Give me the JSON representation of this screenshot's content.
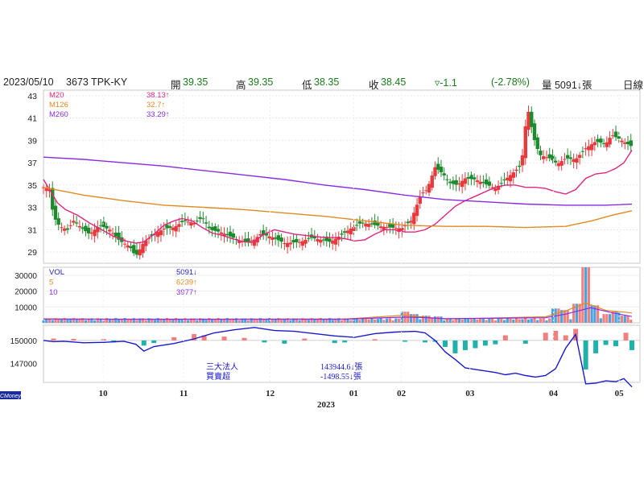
{
  "header": {
    "date": "2023/05/10",
    "stock": "3673 TPK-KY",
    "open_label": "開",
    "open": "39.35",
    "high_label": "高",
    "high": "39.35",
    "low_label": "低",
    "low": "38.35",
    "close_label": "收",
    "close": "38.45",
    "change": "▿-1.1",
    "change_pct": "(-2.78%)",
    "volume_text": "量 5091↓張",
    "period": "日線"
  },
  "colors": {
    "up": "#e8393d",
    "down": "#1e8a2e",
    "ma20": "#e0277f",
    "ma126": "#e08a20",
    "ma260": "#8a2be2",
    "inst_line": "#1a1acc",
    "bar_pos": "#f08080",
    "bar_neg": "#20b2aa"
  },
  "chart_data": [
    {
      "type": "candlestick",
      "panel": "price",
      "yticks": [
        "43",
        "41",
        "39",
        "37",
        "35",
        "33",
        "31",
        "29"
      ],
      "ylim": [
        28,
        43.5
      ],
      "legend": [
        {
          "name": "M20",
          "value": "38.13↑"
        },
        {
          "name": "M126",
          "value": "32.7↑"
        },
        {
          "name": "M260",
          "value": "33.29↑"
        }
      ],
      "series": [
        {
          "name": "M20",
          "points": [
            [
              0,
              35.5
            ],
            [
              6,
              34.6
            ],
            [
              14,
              33.4
            ],
            [
              22,
              32.8
            ],
            [
              34,
              32.3
            ],
            [
              46,
              31.6
            ],
            [
              58,
              31.0
            ],
            [
              70,
              30.4
            ],
            [
              82,
              30.0
            ],
            [
              92,
              29.8
            ],
            [
              100,
              29.9
            ],
            [
              110,
              30.6
            ],
            [
              120,
              31.4
            ],
            [
              130,
              31.8
            ],
            [
              138,
              32.0
            ],
            [
              148,
              31.8
            ],
            [
              158,
              31.2
            ],
            [
              168,
              30.7
            ],
            [
              178,
              30.5
            ],
            [
              188,
              30.2
            ],
            [
              200,
              29.9
            ],
            [
              210,
              30.0
            ],
            [
              220,
              30.6
            ],
            [
              230,
              31.0
            ],
            [
              240,
              30.8
            ],
            [
              250,
              30.6
            ],
            [
              260,
              30.5
            ],
            [
              270,
              30.4
            ],
            [
              280,
              30.3
            ],
            [
              290,
              30.3
            ],
            [
              300,
              30.2
            ],
            [
              310,
              30.0
            ],
            [
              320,
              30.1
            ],
            [
              330,
              30.6
            ],
            [
              340,
              31.0
            ],
            [
              350,
              31.0
            ],
            [
              360,
              30.8
            ],
            [
              370,
              30.8
            ],
            [
              380,
              31.0
            ],
            [
              390,
              31.5
            ],
            [
              400,
              32.3
            ],
            [
              410,
              33.1
            ],
            [
              420,
              33.6
            ],
            [
              430,
              34.0
            ],
            [
              440,
              34.4
            ],
            [
              450,
              34.8
            ],
            [
              460,
              35.0
            ],
            [
              470,
              35.0
            ],
            [
              480,
              34.8
            ],
            [
              490,
              34.8
            ],
            [
              500,
              34.7
            ],
            [
              510,
              34.4
            ],
            [
              520,
              34.2
            ],
            [
              530,
              34.6
            ],
            [
              540,
              35.6
            ],
            [
              550,
              36.0
            ],
            [
              560,
              36.1
            ],
            [
              570,
              36.5
            ],
            [
              578,
              37.0
            ],
            [
              586,
              38.13
            ]
          ]
        },
        {
          "name": "M126",
          "points": [
            [
              0,
              34.8
            ],
            [
              40,
              34.1
            ],
            [
              80,
              33.6
            ],
            [
              120,
              33.2
            ],
            [
              160,
              33.0
            ],
            [
              200,
              32.8
            ],
            [
              240,
              32.5
            ],
            [
              280,
              32.2
            ],
            [
              320,
              31.8
            ],
            [
              360,
              31.4
            ],
            [
              400,
              31.3
            ],
            [
              440,
              31.3
            ],
            [
              480,
              31.2
            ],
            [
              520,
              31.3
            ],
            [
              546,
              31.8
            ],
            [
              566,
              32.3
            ],
            [
              586,
              32.7
            ]
          ]
        },
        {
          "name": "M260",
          "points": [
            [
              0,
              37.5
            ],
            [
              40,
              37.3
            ],
            [
              80,
              37.0
            ],
            [
              120,
              36.7
            ],
            [
              160,
              36.3
            ],
            [
              200,
              35.9
            ],
            [
              240,
              35.5
            ],
            [
              280,
              35.0
            ],
            [
              320,
              34.6
            ],
            [
              360,
              34.1
            ],
            [
              400,
              33.7
            ],
            [
              440,
              33.5
            ],
            [
              480,
              33.3
            ],
            [
              520,
              33.2
            ],
            [
              560,
              33.2
            ],
            [
              586,
              33.29
            ]
          ]
        }
      ]
    },
    {
      "type": "bar",
      "panel": "volume",
      "yticks": [
        "30000",
        "20000",
        "10000"
      ],
      "ylim": [
        0,
        35000
      ],
      "legend": [
        {
          "name": "VOL",
          "value": "5091↓"
        },
        {
          "name": "5",
          "value": "6239↑"
        },
        {
          "name": "10",
          "value": "3977↑"
        }
      ],
      "spikes": [
        [
          360,
          7000
        ],
        [
          370,
          5500
        ],
        [
          380,
          4500
        ],
        [
          392,
          4000
        ],
        [
          510,
          9000
        ],
        [
          520,
          8000
        ],
        [
          530,
          12000
        ],
        [
          540,
          35000
        ],
        [
          550,
          11000
        ],
        [
          560,
          5500
        ],
        [
          570,
          7000
        ],
        [
          580,
          4500
        ]
      ]
    },
    {
      "type": "bar+line",
      "panel": "institutional",
      "yticks": [
        "150000",
        "147000"
      ],
      "ylim": [
        144500,
        152000
      ],
      "labels": [
        {
          "name": "三大法人",
          "value": "143944.6↓張"
        },
        {
          "name": "買賣超",
          "value": "-1498.55↓張"
        }
      ],
      "line": [
        [
          0,
          150000
        ],
        [
          10,
          149850
        ],
        [
          20,
          149900
        ],
        [
          40,
          149700
        ],
        [
          60,
          149750
        ],
        [
          80,
          149900
        ],
        [
          92,
          149500
        ],
        [
          100,
          148600
        ],
        [
          110,
          149200
        ],
        [
          130,
          149600
        ],
        [
          150,
          150200
        ],
        [
          170,
          151000
        ],
        [
          190,
          151400
        ],
        [
          210,
          151700
        ],
        [
          230,
          151300
        ],
        [
          250,
          151200
        ],
        [
          270,
          150900
        ],
        [
          290,
          150600
        ],
        [
          310,
          150400
        ],
        [
          330,
          150900
        ],
        [
          350,
          151100
        ],
        [
          370,
          151200
        ],
        [
          380,
          151000
        ],
        [
          390,
          150000
        ],
        [
          400,
          148500
        ],
        [
          410,
          147500
        ],
        [
          420,
          146400
        ],
        [
          430,
          146200
        ],
        [
          440,
          146000
        ],
        [
          450,
          145800
        ],
        [
          460,
          145500
        ],
        [
          470,
          145700
        ],
        [
          480,
          145400
        ],
        [
          490,
          145200
        ],
        [
          500,
          145400
        ],
        [
          510,
          146300
        ],
        [
          520,
          149000
        ],
        [
          530,
          150800
        ],
        [
          540,
          144300
        ],
        [
          550,
          144400
        ],
        [
          560,
          144700
        ],
        [
          570,
          144600
        ],
        [
          578,
          145000
        ],
        [
          586,
          143900
        ]
      ],
      "bars": [
        [
          10,
          300
        ],
        [
          30,
          250
        ],
        [
          60,
          200
        ],
        [
          70,
          -300
        ],
        [
          100,
          -800
        ],
        [
          110,
          -400
        ],
        [
          130,
          500
        ],
        [
          150,
          1000
        ],
        [
          160,
          800
        ],
        [
          180,
          600
        ],
        [
          200,
          400
        ],
        [
          220,
          -300
        ],
        [
          240,
          -500
        ],
        [
          260,
          300
        ],
        [
          290,
          -400
        ],
        [
          300,
          -300
        ],
        [
          330,
          200
        ],
        [
          360,
          -200
        ],
        [
          380,
          -300
        ],
        [
          390,
          -200
        ],
        [
          400,
          -1000
        ],
        [
          410,
          -2000
        ],
        [
          420,
          -1500
        ],
        [
          430,
          -1200
        ],
        [
          440,
          -800
        ],
        [
          450,
          -600
        ],
        [
          460,
          800
        ],
        [
          480,
          -500
        ],
        [
          500,
          1200
        ],
        [
          510,
          1500
        ],
        [
          520,
          800
        ],
        [
          530,
          1800
        ],
        [
          540,
          -4500
        ],
        [
          550,
          -2000
        ],
        [
          560,
          -700
        ],
        [
          570,
          -900
        ],
        [
          580,
          1200
        ],
        [
          586,
          -1500
        ]
      ]
    }
  ],
  "x_axis": {
    "months": [
      {
        "label": "10",
        "pos": 0.1
      },
      {
        "label": "11",
        "pos": 0.235
      },
      {
        "label": "12",
        "pos": 0.38
      },
      {
        "label": "01",
        "pos": 0.52
      },
      {
        "label": "02",
        "pos": 0.6
      },
      {
        "label": "03",
        "pos": 0.715
      },
      {
        "label": "04",
        "pos": 0.855
      },
      {
        "label": "05",
        "pos": 0.965
      }
    ],
    "year": "2023",
    "brand": "CMoney"
  }
}
